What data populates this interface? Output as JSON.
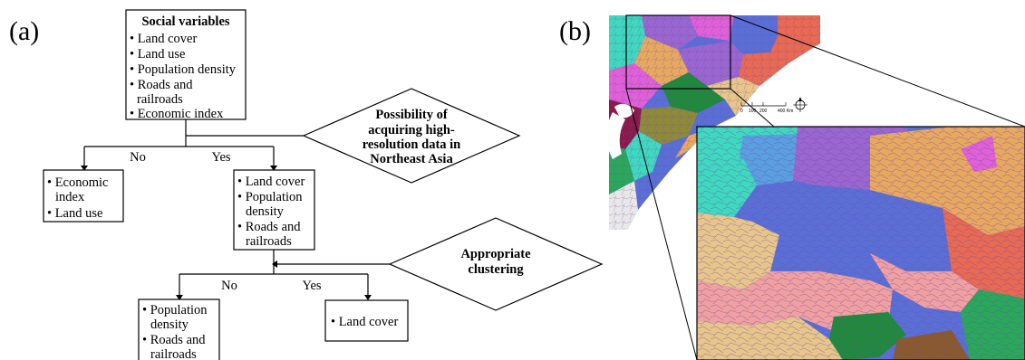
{
  "panel_a": {
    "label": "(a)",
    "social_box": {
      "title": "Social variables",
      "items": [
        "• Land cover",
        "• Land use",
        "• Population density",
        "• Roads and",
        "railroads",
        "• Economic index"
      ]
    },
    "diamond1": {
      "lines": [
        "Possibility of",
        "acquiring high-",
        "resolution data in",
        "Northeast Asia"
      ]
    },
    "no1": "No",
    "yes1": "Yes",
    "left_box": {
      "lines": [
        "• Economic",
        "index",
        "• Land use"
      ]
    },
    "mid_box": {
      "lines": [
        "• Land cover",
        "• Population",
        "density",
        "• Roads and",
        "railroads"
      ]
    },
    "diamond2": {
      "lines": [
        "Appropriate",
        "clustering"
      ]
    },
    "no2": "No",
    "yes2": "Yes",
    "bottom_left_box": {
      "lines": [
        "• Population",
        "density",
        "• Roads and",
        "railroads"
      ]
    },
    "bottom_right_box": {
      "lines": [
        "• Land cover"
      ]
    }
  },
  "panel_b": {
    "label": "(b)",
    "scale_labels": [
      "0",
      "100",
      "200",
      "400 Km"
    ],
    "map_colors": {
      "teal": "#3fd9c0",
      "blue": "#5a6fd6",
      "purple": "#9a66cf",
      "orange": "#e8a860",
      "pink": "#f0a0a0",
      "coral": "#e86a52",
      "green": "#1f8a3a",
      "magenta": "#e060d8",
      "tan": "#e8c68a",
      "olive": "#8f8a3a",
      "maroon": "#8a1a4a"
    }
  }
}
